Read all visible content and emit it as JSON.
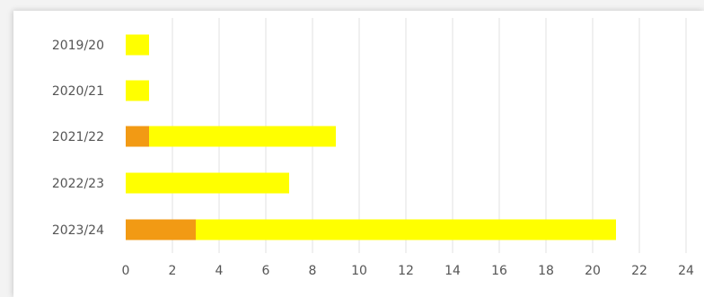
{
  "chart_data": {
    "type": "bar",
    "orientation": "horizontal",
    "stacked": true,
    "categories": [
      "2019/20",
      "2020/21",
      "2021/22",
      "2022/23",
      "2023/24"
    ],
    "series": [
      {
        "color": "#f29a14",
        "values": [
          0,
          0,
          1,
          0,
          3
        ]
      },
      {
        "color": "#ffff00",
        "values": [
          1,
          1,
          8,
          7,
          18
        ]
      }
    ],
    "xlim": [
      0,
      24
    ],
    "x_ticks": [
      "0",
      "2",
      "4",
      "6",
      "8",
      "10",
      "12",
      "14",
      "16",
      "18",
      "20",
      "22",
      "24"
    ],
    "grid": "vertical",
    "legend": "none",
    "title": "",
    "xlabel": "",
    "ylabel": ""
  }
}
